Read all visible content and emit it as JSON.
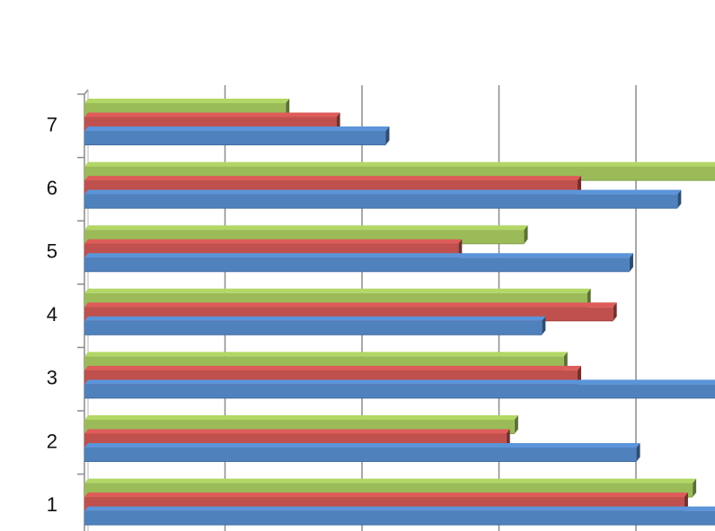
{
  "chart_data": {
    "type": "bar",
    "orientation": "horizontal",
    "style": "3d-clustered",
    "title": "",
    "xlabel": "",
    "ylabel": "",
    "categories": [
      "1",
      "2",
      "3",
      "4",
      "5",
      "6",
      "7"
    ],
    "xlim": [
      0,
      4.6
    ],
    "grid": true,
    "legend": "none",
    "series": [
      {
        "color": "#4f81bd",
        "values": [
          4.72,
          4.03,
          4.65,
          3.34,
          3.98,
          4.33,
          2.2
        ]
      },
      {
        "color": "#c0504d",
        "values": [
          4.38,
          3.08,
          3.6,
          3.86,
          2.73,
          3.6,
          1.84
        ]
      },
      {
        "color": "#9bbb59",
        "values": [
          4.44,
          3.14,
          3.5,
          3.67,
          3.21,
          4.72,
          1.47
        ]
      }
    ]
  }
}
